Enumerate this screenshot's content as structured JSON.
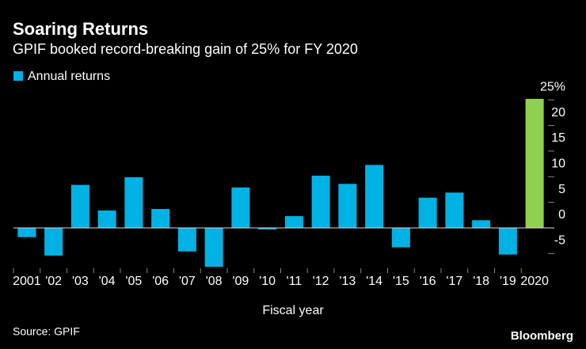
{
  "chart_data": {
    "type": "bar",
    "title": "Soaring Returns",
    "subtitle": "GPIF booked record-breaking gain of 25% for FY 2020",
    "x_label": "Fiscal year",
    "source": "Source: GPIF",
    "brand": "Bloomberg",
    "categories": [
      "2001",
      "'02",
      "'03",
      "'04",
      "'05",
      "'06",
      "'07",
      "'08",
      "'09",
      "'10",
      "'11",
      "'12",
      "'13",
      "'14",
      "'15",
      "'16",
      "'17",
      "'18",
      "'19",
      "2020"
    ],
    "series": [
      {
        "name": "Annual returns",
        "color": "#00b2e3",
        "values": [
          -1.8,
          -5.4,
          8.4,
          3.4,
          9.9,
          3.7,
          -4.6,
          -7.6,
          7.9,
          -0.3,
          2.3,
          10.2,
          8.6,
          12.3,
          -3.8,
          5.9,
          6.9,
          1.5,
          -5.2,
          25.2
        ],
        "highlight": {
          "index": 19,
          "color": "#8fd14f"
        }
      }
    ],
    "ylim": [
      -8.5,
      27.5
    ],
    "yticks": [
      -5,
      0,
      5,
      10,
      15,
      20,
      {
        "value": 25,
        "label": "25%"
      }
    ],
    "y_axis_side": "right",
    "grid": false
  }
}
